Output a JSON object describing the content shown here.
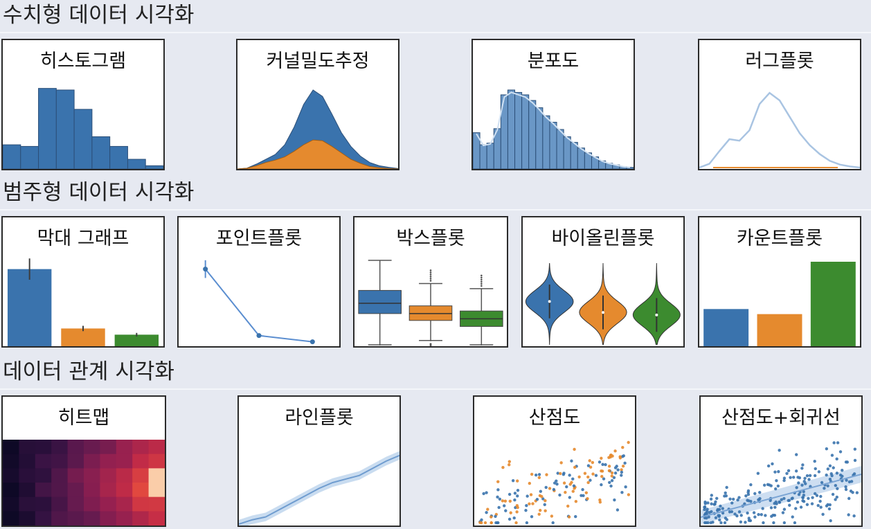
{
  "sections": [
    {
      "title": "수치형 데이터 시각화"
    },
    {
      "title": "범주형 데이터 시각화"
    },
    {
      "title": "데이터 관계 시각화"
    }
  ],
  "colors": {
    "blue": "#3a73ad",
    "orange": "#e58a2e",
    "green": "#3c8b2f",
    "light_blue": "#a9c4e2"
  },
  "chart_data": [
    {
      "type": "bar",
      "title": "히스토그램",
      "values": [
        0.3,
        0.28,
        1.0,
        0.98,
        0.74,
        0.4,
        0.28,
        0.12,
        0.04
      ],
      "ylim": [
        0,
        1.1
      ]
    },
    {
      "type": "area",
      "title": "커널밀도추정",
      "series": [
        {
          "values": [
            0,
            0.01,
            0.06,
            0.12,
            0.18,
            0.3,
            0.52,
            0.8,
            0.98,
            0.9,
            0.68,
            0.45,
            0.28,
            0.16,
            0.08,
            0.04,
            0.02,
            0.005
          ]
        },
        {
          "values": [
            0,
            0.01,
            0.04,
            0.08,
            0.11,
            0.15,
            0.22,
            0.3,
            0.36,
            0.35,
            0.28,
            0.2,
            0.12,
            0.07,
            0.03,
            0.015,
            0.005,
            0
          ]
        }
      ],
      "ylim": [
        0,
        1.1
      ]
    },
    {
      "type": "bar",
      "title": "분포도",
      "values": [
        0.45,
        0.3,
        0.32,
        0.5,
        0.92,
        0.98,
        0.95,
        0.92,
        0.85,
        0.76,
        0.66,
        0.58,
        0.49,
        0.4,
        0.33,
        0.26,
        0.2,
        0.15,
        0.1,
        0.07,
        0.05,
        0.03,
        0.02
      ],
      "ylim": [
        0,
        1.1
      ]
    },
    {
      "type": "line",
      "title": "러그플롯",
      "values": [
        0,
        0.05,
        0.22,
        0.38,
        0.36,
        0.5,
        0.85,
        1.0,
        0.9,
        0.68,
        0.46,
        0.3,
        0.18,
        0.09,
        0.04,
        0.015,
        0
      ],
      "ylim": [
        0,
        1.15
      ]
    },
    {
      "type": "bar",
      "title": "막대 그래프",
      "values": [
        0.87,
        0.2,
        0.13
      ],
      "errors": [
        0.12,
        0.03,
        0.02
      ],
      "ylim": [
        0,
        1.0
      ]
    },
    {
      "type": "line",
      "title": "포인트플롯",
      "values": [
        0.87,
        0.12,
        0.05
      ],
      "errors": [
        0.1,
        0.01,
        0.01
      ],
      "ylim": [
        0,
        1.0
      ]
    },
    {
      "type": "box",
      "title": "박스플롯",
      "boxes": [
        {
          "min": 0.0,
          "q1": 0.38,
          "median": 0.5,
          "q3": 0.65,
          "max": 1.0
        },
        {
          "min": 0.05,
          "q1": 0.3,
          "median": 0.38,
          "q3": 0.47,
          "max": 0.73
        },
        {
          "min": 0.0,
          "q1": 0.23,
          "median": 0.32,
          "q3": 0.41,
          "max": 0.67
        }
      ],
      "ylim": [
        0,
        1.0
      ]
    },
    {
      "type": "violin",
      "title": "바이올린플롯",
      "groups": [
        {
          "center": 0.53,
          "spread": 0.5
        },
        {
          "center": 0.4,
          "spread": 0.48
        },
        {
          "center": 0.37,
          "spread": 0.5
        }
      ],
      "ylim": [
        0,
        1.0
      ]
    },
    {
      "type": "bar",
      "title": "카운트플롯",
      "values": [
        0.44,
        0.38,
        1.0
      ],
      "ylim": [
        0,
        1.0
      ]
    },
    {
      "type": "heatmap",
      "title": "히트맵",
      "rows": 6,
      "cols": 10
    },
    {
      "type": "line",
      "title": "라인플롯",
      "values": [
        0.02,
        0.08,
        0.12,
        0.22,
        0.32,
        0.42,
        0.52,
        0.6,
        0.65,
        0.7,
        0.8,
        0.9,
        0.98
      ],
      "ylim": [
        0,
        1.2
      ]
    },
    {
      "type": "scatter",
      "title": "산점도"
    },
    {
      "type": "scatter",
      "title": "산점도+회귀선"
    }
  ]
}
